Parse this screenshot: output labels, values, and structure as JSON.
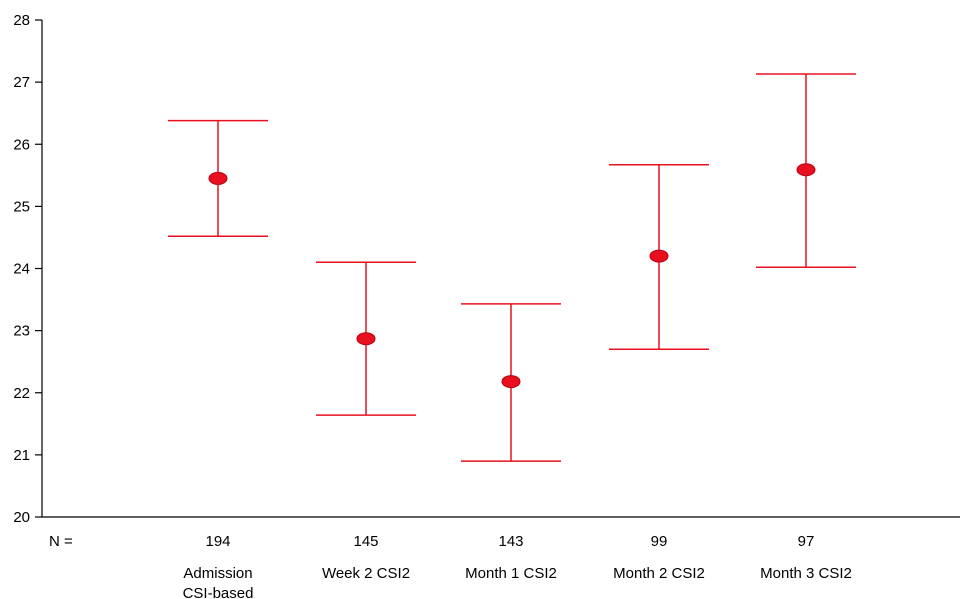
{
  "chart_data": {
    "type": "errorbar",
    "title": "",
    "xlabel": "",
    "ylabel": "",
    "ylim": [
      20,
      28
    ],
    "yticks": [
      "20",
      "21",
      "22",
      "23",
      "24",
      "25",
      "26",
      "27",
      "28"
    ],
    "n_prefix": "N =",
    "categories": [
      {
        "label_lines": [
          "Admission",
          "CSI-based"
        ],
        "n": "194",
        "mean": 25.45,
        "lower": 24.52,
        "upper": 26.38
      },
      {
        "label_lines": [
          "Week 2 CSI2"
        ],
        "n": "145",
        "mean": 22.87,
        "lower": 21.64,
        "upper": 24.1
      },
      {
        "label_lines": [
          "Month 1 CSI2"
        ],
        "n": "143",
        "mean": 22.18,
        "lower": 20.9,
        "upper": 23.43
      },
      {
        "label_lines": [
          "Month 2 CSI2"
        ],
        "n": "99",
        "mean": 24.2,
        "lower": 22.7,
        "upper": 25.67
      },
      {
        "label_lines": [
          "Month 3 CSI2"
        ],
        "n": "97",
        "mean": 25.59,
        "lower": 24.02,
        "upper": 27.13
      }
    ],
    "grid": false,
    "colors": {
      "series": "#e8101e",
      "axis": "#000000"
    }
  }
}
